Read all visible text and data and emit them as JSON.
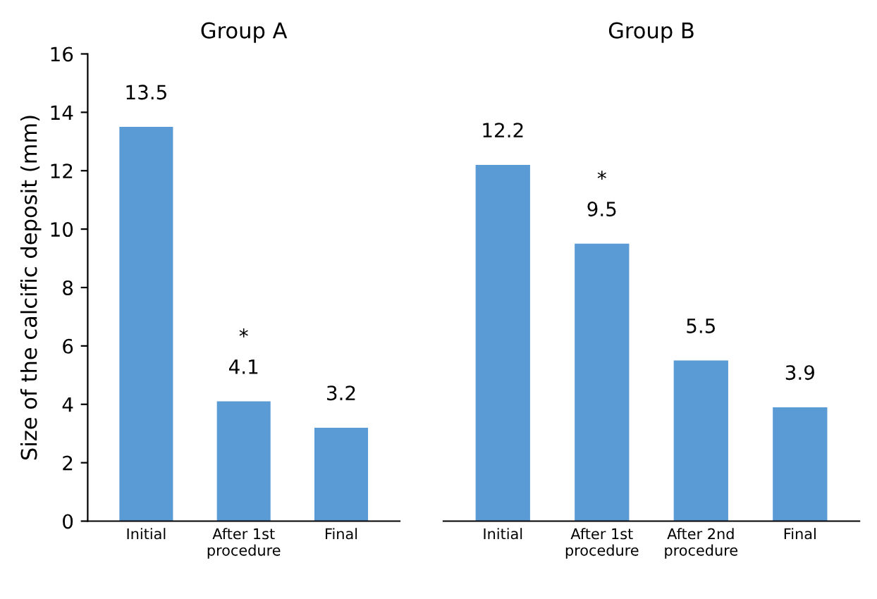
{
  "chart_data": [
    {
      "type": "bar",
      "title": "Group A",
      "ylabel": "Size of the calcific deposit (mm)",
      "categories": [
        "Initial",
        "After 1st procedure",
        "Final"
      ],
      "values": [
        13.5,
        4.1,
        3.2
      ],
      "value_labels": [
        "13.5",
        "*\n4.1",
        "3.2"
      ],
      "color": "#5b9bd5",
      "ylim": [
        0,
        16
      ],
      "yticks": [
        0,
        2,
        4,
        6,
        8,
        10,
        12,
        14,
        16
      ],
      "grid": false
    },
    {
      "type": "bar",
      "title": "Group B",
      "categories": [
        "Initial",
        "After 1st procedure",
        "After 2nd procedure",
        "Final"
      ],
      "values": [
        12.2,
        9.5,
        5.5,
        3.9
      ],
      "value_labels": [
        "12.2",
        "*\n9.5",
        "5.5",
        "3.9"
      ],
      "color": "#5b9bd5",
      "ylim": [
        0,
        16
      ],
      "yticks": [
        0,
        2,
        4,
        6,
        8,
        10,
        12,
        14,
        16
      ],
      "tick_labels": "x",
      "grid": false
    }
  ]
}
